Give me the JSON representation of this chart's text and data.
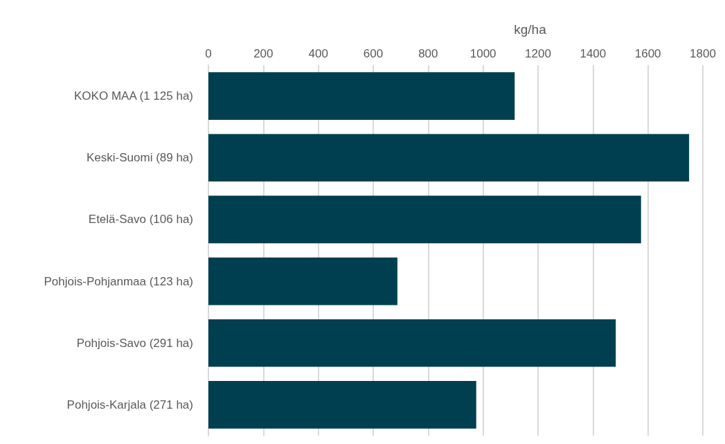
{
  "chart_data": {
    "type": "bar",
    "orientation": "horizontal",
    "xlabel": "kg/ha",
    "categories": [
      "KOKO MAA (1 125 ha)",
      "Keski-Suomi (89 ha)",
      "Etelä-Savo (106 ha)",
      "Pohjois-Pohjanmaa (123 ha)",
      "Pohjois-Savo (291 ha)",
      "Pohjois-Karjala (271 ha)"
    ],
    "values": [
      1115,
      1750,
      1575,
      688,
      1483,
      975
    ],
    "color": "#003f50",
    "xlim": [
      0,
      1800
    ],
    "xticks": [
      0,
      200,
      400,
      600,
      800,
      1000,
      1200,
      1400,
      1600,
      1800
    ],
    "grid": "x"
  }
}
